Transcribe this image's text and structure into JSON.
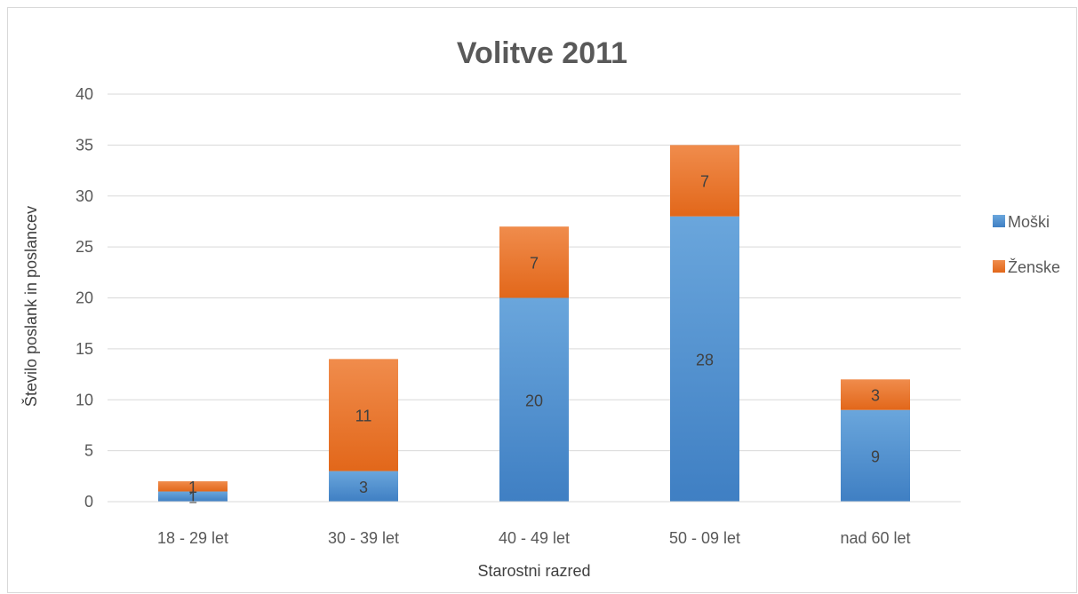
{
  "chart_data": {
    "type": "bar",
    "stacked": true,
    "title": "Volitve 2011",
    "xlabel": "Starostni razred",
    "ylabel": "Število poslank in poslancev",
    "categories": [
      "18 - 29 let",
      "30 - 39 let",
      "40 - 49 let",
      "50 - 09 let",
      "nad 60 let"
    ],
    "series": [
      {
        "name": "Moški",
        "values": [
          1,
          3,
          20,
          28,
          9
        ],
        "color": "#5b9bd5"
      },
      {
        "name": "Ženske",
        "values": [
          1,
          11,
          7,
          7,
          3
        ],
        "color": "#ed7d31"
      }
    ],
    "ylim": [
      0,
      40
    ],
    "yticks": [
      0,
      5,
      10,
      15,
      20,
      25,
      30,
      35,
      40
    ],
    "grid": true,
    "legend_position": "right",
    "data_labels": true
  }
}
